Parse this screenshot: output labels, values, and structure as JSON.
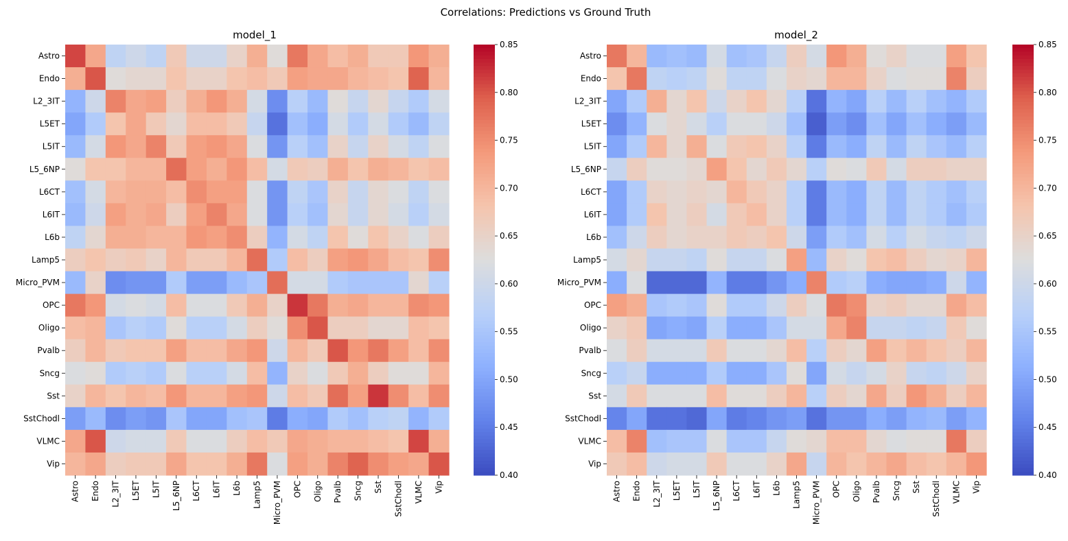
{
  "figure": {
    "suptitle": "Correlations: Predictions vs Ground Truth"
  },
  "chart_data": [
    {
      "type": "heatmap",
      "title": "model_1",
      "colormap": "coolwarm",
      "vmin": 0.4,
      "vmax": 0.85,
      "colorbar_ticks": [
        0.4,
        0.45,
        0.5,
        0.55,
        0.6,
        0.65,
        0.7,
        0.75,
        0.8,
        0.85
      ],
      "rows": [
        "Astro",
        "Endo",
        "L2_3IT",
        "L5ET",
        "L5IT",
        "L5_6NP",
        "L6CT",
        "L6IT",
        "L6b",
        "Lamp5",
        "Micro_PVM",
        "OPC",
        "Oligo",
        "Pvalb",
        "Sncg",
        "Sst",
        "SstChodl",
        "VLMC",
        "Vip"
      ],
      "cols": [
        "Astro",
        "Endo",
        "L2_3IT",
        "L5ET",
        "L5IT",
        "L5_6NP",
        "L6CT",
        "L6IT",
        "L6b",
        "Lamp5",
        "Micro_PVM",
        "OPC",
        "Oligo",
        "Pvalb",
        "Sncg",
        "Sst",
        "SstChodl",
        "VLMC",
        "Vip"
      ],
      "values": [
        [
          0.81,
          0.72,
          0.58,
          0.6,
          0.58,
          0.67,
          0.6,
          0.6,
          0.65,
          0.71,
          0.63,
          0.77,
          0.72,
          0.69,
          0.71,
          0.67,
          0.67,
          0.74,
          0.71
        ],
        [
          0.71,
          0.8,
          0.63,
          0.64,
          0.64,
          0.68,
          0.65,
          0.65,
          0.68,
          0.69,
          0.67,
          0.73,
          0.72,
          0.72,
          0.7,
          0.69,
          0.68,
          0.79,
          0.7
        ],
        [
          0.52,
          0.6,
          0.76,
          0.72,
          0.73,
          0.66,
          0.71,
          0.74,
          0.71,
          0.61,
          0.47,
          0.57,
          0.53,
          0.63,
          0.59,
          0.64,
          0.59,
          0.56,
          0.61
        ],
        [
          0.5,
          0.56,
          0.68,
          0.72,
          0.67,
          0.64,
          0.69,
          0.69,
          0.67,
          0.59,
          0.44,
          0.54,
          0.51,
          0.61,
          0.56,
          0.61,
          0.56,
          0.53,
          0.58
        ],
        [
          0.53,
          0.61,
          0.74,
          0.72,
          0.76,
          0.67,
          0.73,
          0.74,
          0.72,
          0.62,
          0.48,
          0.57,
          0.54,
          0.65,
          0.59,
          0.65,
          0.61,
          0.58,
          0.62
        ],
        [
          0.63,
          0.68,
          0.68,
          0.7,
          0.7,
          0.78,
          0.73,
          0.71,
          0.74,
          0.69,
          0.61,
          0.67,
          0.66,
          0.71,
          0.68,
          0.71,
          0.7,
          0.68,
          0.69
        ],
        [
          0.54,
          0.61,
          0.7,
          0.71,
          0.71,
          0.69,
          0.75,
          0.73,
          0.73,
          0.62,
          0.48,
          0.58,
          0.55,
          0.65,
          0.59,
          0.64,
          0.62,
          0.58,
          0.62
        ],
        [
          0.53,
          0.6,
          0.73,
          0.71,
          0.72,
          0.66,
          0.73,
          0.76,
          0.72,
          0.62,
          0.48,
          0.57,
          0.54,
          0.64,
          0.59,
          0.64,
          0.61,
          0.57,
          0.61
        ],
        [
          0.58,
          0.64,
          0.71,
          0.71,
          0.7,
          0.7,
          0.74,
          0.73,
          0.75,
          0.66,
          0.52,
          0.61,
          0.58,
          0.68,
          0.63,
          0.68,
          0.65,
          0.62,
          0.66
        ],
        [
          0.66,
          0.68,
          0.66,
          0.67,
          0.65,
          0.7,
          0.67,
          0.67,
          0.7,
          0.78,
          0.56,
          0.69,
          0.66,
          0.73,
          0.74,
          0.72,
          0.69,
          0.68,
          0.75
        ],
        [
          0.53,
          0.65,
          0.47,
          0.48,
          0.48,
          0.56,
          0.49,
          0.49,
          0.53,
          0.55,
          0.78,
          0.61,
          0.61,
          0.56,
          0.55,
          0.55,
          0.55,
          0.64,
          0.57
        ],
        [
          0.77,
          0.74,
          0.61,
          0.62,
          0.61,
          0.69,
          0.62,
          0.62,
          0.67,
          0.71,
          0.65,
          0.82,
          0.77,
          0.71,
          0.72,
          0.7,
          0.7,
          0.75,
          0.74
        ],
        [
          0.69,
          0.7,
          0.55,
          0.57,
          0.56,
          0.63,
          0.57,
          0.57,
          0.61,
          0.66,
          0.63,
          0.75,
          0.8,
          0.66,
          0.66,
          0.64,
          0.64,
          0.69,
          0.68
        ],
        [
          0.66,
          0.7,
          0.67,
          0.68,
          0.68,
          0.73,
          0.69,
          0.69,
          0.72,
          0.74,
          0.6,
          0.7,
          0.67,
          0.8,
          0.74,
          0.77,
          0.73,
          0.69,
          0.75
        ],
        [
          0.62,
          0.63,
          0.56,
          0.57,
          0.56,
          0.62,
          0.57,
          0.57,
          0.61,
          0.69,
          0.52,
          0.65,
          0.62,
          0.67,
          0.71,
          0.66,
          0.63,
          0.63,
          0.7
        ],
        [
          0.65,
          0.7,
          0.68,
          0.7,
          0.69,
          0.74,
          0.7,
          0.7,
          0.73,
          0.74,
          0.6,
          0.69,
          0.67,
          0.78,
          0.73,
          0.82,
          0.75,
          0.69,
          0.75
        ],
        [
          0.49,
          0.53,
          0.47,
          0.49,
          0.48,
          0.55,
          0.5,
          0.5,
          0.54,
          0.55,
          0.45,
          0.51,
          0.5,
          0.56,
          0.54,
          0.57,
          0.58,
          0.52,
          0.56
        ],
        [
          0.72,
          0.8,
          0.6,
          0.61,
          0.61,
          0.67,
          0.62,
          0.62,
          0.66,
          0.69,
          0.67,
          0.72,
          0.71,
          0.7,
          0.7,
          0.69,
          0.68,
          0.81,
          0.71
        ],
        [
          0.7,
          0.72,
          0.66,
          0.67,
          0.67,
          0.72,
          0.68,
          0.68,
          0.71,
          0.77,
          0.62,
          0.73,
          0.71,
          0.76,
          0.79,
          0.75,
          0.73,
          0.72,
          0.8
        ]
      ]
    },
    {
      "type": "heatmap",
      "title": "model_2",
      "colormap": "coolwarm",
      "vmin": 0.4,
      "vmax": 0.85,
      "colorbar_ticks": [
        0.4,
        0.45,
        0.5,
        0.55,
        0.6,
        0.65,
        0.7,
        0.75,
        0.8,
        0.85
      ],
      "rows": [
        "Astro",
        "Endo",
        "L2_3IT",
        "L5ET",
        "L5IT",
        "L5_6NP",
        "L6CT",
        "L6IT",
        "L6b",
        "Lamp5",
        "Micro_PVM",
        "OPC",
        "Oligo",
        "Pvalb",
        "Sncg",
        "Sst",
        "SstChodl",
        "VLMC",
        "Vip"
      ],
      "cols": [
        "Astro",
        "Endo",
        "L2_3IT",
        "L5ET",
        "L5IT",
        "L5_6NP",
        "L6CT",
        "L6IT",
        "L6b",
        "Lamp5",
        "Micro_PVM",
        "OPC",
        "Oligo",
        "Pvalb",
        "Sncg",
        "Sst",
        "SstChodl",
        "VLMC",
        "Vip"
      ],
      "values": [
        [
          0.77,
          0.7,
          0.53,
          0.54,
          0.53,
          0.61,
          0.54,
          0.55,
          0.59,
          0.66,
          0.61,
          0.74,
          0.71,
          0.63,
          0.65,
          0.62,
          0.62,
          0.73,
          0.68
        ],
        [
          0.68,
          0.77,
          0.58,
          0.57,
          0.58,
          0.63,
          0.58,
          0.58,
          0.62,
          0.65,
          0.64,
          0.7,
          0.7,
          0.65,
          0.62,
          0.63,
          0.63,
          0.76,
          0.66
        ],
        [
          0.5,
          0.56,
          0.71,
          0.64,
          0.68,
          0.6,
          0.65,
          0.68,
          0.64,
          0.57,
          0.44,
          0.52,
          0.5,
          0.57,
          0.53,
          0.57,
          0.54,
          0.52,
          0.56
        ],
        [
          0.47,
          0.52,
          0.62,
          0.64,
          0.61,
          0.57,
          0.62,
          0.62,
          0.6,
          0.54,
          0.42,
          0.49,
          0.47,
          0.54,
          0.5,
          0.54,
          0.51,
          0.49,
          0.53
        ],
        [
          0.5,
          0.56,
          0.7,
          0.64,
          0.71,
          0.62,
          0.67,
          0.68,
          0.65,
          0.57,
          0.45,
          0.53,
          0.51,
          0.58,
          0.53,
          0.58,
          0.55,
          0.53,
          0.57
        ],
        [
          0.59,
          0.66,
          0.63,
          0.63,
          0.64,
          0.73,
          0.68,
          0.64,
          0.67,
          0.64,
          0.57,
          0.63,
          0.62,
          0.67,
          0.61,
          0.66,
          0.66,
          0.65,
          0.65
        ],
        [
          0.5,
          0.56,
          0.65,
          0.64,
          0.65,
          0.64,
          0.7,
          0.67,
          0.65,
          0.57,
          0.45,
          0.53,
          0.51,
          0.58,
          0.53,
          0.58,
          0.56,
          0.54,
          0.57
        ],
        [
          0.5,
          0.56,
          0.68,
          0.64,
          0.66,
          0.61,
          0.67,
          0.69,
          0.65,
          0.57,
          0.45,
          0.53,
          0.51,
          0.58,
          0.53,
          0.58,
          0.56,
          0.53,
          0.56
        ],
        [
          0.54,
          0.6,
          0.66,
          0.64,
          0.65,
          0.65,
          0.67,
          0.66,
          0.68,
          0.6,
          0.49,
          0.56,
          0.54,
          0.61,
          0.57,
          0.61,
          0.59,
          0.58,
          0.6
        ],
        [
          0.61,
          0.64,
          0.59,
          0.59,
          0.58,
          0.63,
          0.59,
          0.59,
          0.62,
          0.73,
          0.53,
          0.65,
          0.63,
          0.68,
          0.69,
          0.66,
          0.64,
          0.65,
          0.7
        ],
        [
          0.51,
          0.62,
          0.43,
          0.43,
          0.43,
          0.52,
          0.45,
          0.45,
          0.48,
          0.51,
          0.76,
          0.56,
          0.57,
          0.51,
          0.5,
          0.5,
          0.51,
          0.6,
          0.52
        ],
        [
          0.73,
          0.71,
          0.55,
          0.56,
          0.55,
          0.63,
          0.56,
          0.56,
          0.6,
          0.66,
          0.62,
          0.77,
          0.75,
          0.65,
          0.66,
          0.64,
          0.64,
          0.72,
          0.69
        ],
        [
          0.65,
          0.67,
          0.5,
          0.51,
          0.5,
          0.57,
          0.51,
          0.51,
          0.55,
          0.61,
          0.61,
          0.72,
          0.76,
          0.59,
          0.59,
          0.58,
          0.59,
          0.67,
          0.63
        ],
        [
          0.62,
          0.66,
          0.61,
          0.61,
          0.61,
          0.67,
          0.62,
          0.62,
          0.64,
          0.69,
          0.57,
          0.66,
          0.64,
          0.73,
          0.68,
          0.7,
          0.68,
          0.66,
          0.7
        ],
        [
          0.57,
          0.59,
          0.51,
          0.51,
          0.51,
          0.56,
          0.51,
          0.51,
          0.55,
          0.63,
          0.5,
          0.61,
          0.59,
          0.61,
          0.65,
          0.59,
          0.58,
          0.6,
          0.65
        ],
        [
          0.61,
          0.67,
          0.62,
          0.62,
          0.62,
          0.69,
          0.63,
          0.63,
          0.66,
          0.7,
          0.57,
          0.66,
          0.64,
          0.72,
          0.66,
          0.74,
          0.71,
          0.66,
          0.7
        ],
        [
          0.46,
          0.5,
          0.44,
          0.44,
          0.43,
          0.5,
          0.45,
          0.46,
          0.48,
          0.49,
          0.44,
          0.48,
          0.48,
          0.51,
          0.49,
          0.52,
          0.53,
          0.49,
          0.52
        ],
        [
          0.69,
          0.76,
          0.54,
          0.55,
          0.55,
          0.62,
          0.55,
          0.55,
          0.59,
          0.63,
          0.64,
          0.69,
          0.69,
          0.64,
          0.62,
          0.63,
          0.63,
          0.77,
          0.66
        ],
        [
          0.67,
          0.69,
          0.6,
          0.61,
          0.61,
          0.67,
          0.62,
          0.62,
          0.65,
          0.72,
          0.59,
          0.7,
          0.68,
          0.7,
          0.72,
          0.69,
          0.68,
          0.7,
          0.74
        ]
      ]
    }
  ]
}
